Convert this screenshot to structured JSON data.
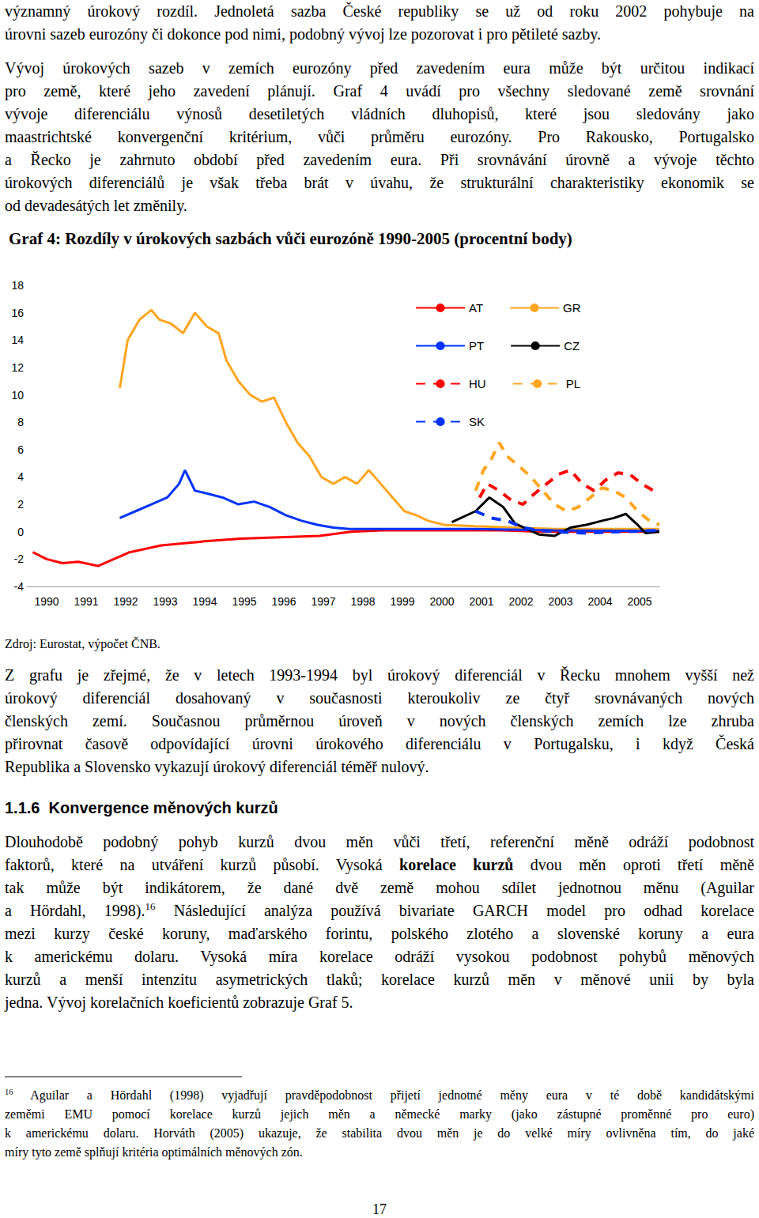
{
  "page": {
    "paragraphs_before": [
      [
        "významný úrokový rozdíl. Jednoletá sazba České republiky se už od roku 2002 pohybuje na",
        "úrovni sazeb eurozóny či dokonce pod nimi, podobný vývoj lze pozorovat i pro pětileté sazby."
      ],
      [
        "Vývoj úrokových sazeb v zemích eurozóny před zavedením eura může být určitou indikací",
        "pro země, které jeho zavedení plánují. Graf 4 uvádí pro všechny sledované země srovnání",
        "vývoje diferenciálu výnosů desetiletých vládních dluhopisů, které jsou sledovány jako",
        "maastrichtské konvergenční kritérium, vůči průměru eurozóny. Pro Rakousko, Portugalsko",
        "a Řecko je zahrnuto období před zavedením eura. Při srovnávání úrovně a vývoje těchto",
        "úrokových diferenciálů je však třeba brát v úvahu, že strukturální charakteristiky ekonomik se",
        "od devadesátých let změnily."
      ]
    ],
    "source": "Zdroj: Eurostat, výpočet ČNB.",
    "paragraphs_after": [
      [
        "Z grafu je zřejmé, že v letech 1993-1994 byl úrokový diferenciál v Řecku mnohem vyšší než",
        "úrokový diferenciál dosahovaný v současnosti kteroukoliv ze čtyř srovnávaných nových",
        "členských zemí. Současnou průměrnou úroveň v nových členských zemích lze zhruba",
        "přirovnat časově odpovídající úrovni úrokového diferenciálu v Portugalsku, i když Česká",
        "Republika a Slovensko vykazují úrokový diferenciál téměř nulový."
      ]
    ],
    "heading": "1.1.6  Konvergence měnových kurzů",
    "paragraphs_section": [
      [
        "Dlouhodobě podobný pohyb kurzů dvou měn vůči třetí, referenční měně odráží podobnost",
        [
          {
            "text": "faktorů, které na utváření kurzů působí. Vysoká "
          },
          {
            "text": "korelace kurzů",
            "style": "bold"
          },
          {
            "text": " dvou měn oproti třetí měně"
          }
        ],
        "tak může být indikátorem, že dané dvě země mohou sdílet jednotnou měnu (Aguilar",
        [
          {
            "text": "a Hördahl, 1998)."
          },
          {
            "text": "16",
            "style": "sup"
          },
          {
            "text": " Následující analýza používá bivariate GARCH model pro odhad korelace"
          }
        ],
        "mezi kurzy české koruny, maďarského forintu, polského zlotého a slovenské koruny a eura",
        "k americkému dolaru. Vysoká míra korelace odráží vysokou podobnost pohybů měnových",
        "kurzů a menší intenzitu asymetrických tlaků; korelace kurzů měn v měnové unii by byla",
        "jedna. Vývoj korelačních koeficientů zobrazuje Graf 5."
      ]
    ],
    "footnote": [
      [
        {
          "text": "16",
          "style": "sup"
        },
        {
          "text": " Aguilar a Hördahl (1998) vyjadřují pravděpodobnost přijetí jednotné měny eura v té době kandidátskými"
        }
      ],
      "zeměmi EMU pomocí korelace kurzů jejich měn a německé marky (jako zástupné proměnné pro euro)",
      "k americkému dolaru. Horváth (2005) ukazuje, že stabilita dvou měn je do velké míry ovlivněna tím, do jaké",
      "míry tyto země splňují kritéria optimálních měnových zón."
    ],
    "page_number": "17"
  },
  "chart_data": {
    "type": "line",
    "title": "Graf 4: Rozdíly v úrokových sazbách vůči eurozóně 1990-2005 (procentní body)",
    "xlim": [
      1990,
      2006
    ],
    "xticks": [
      {
        "value": 1990.5,
        "label": "1990"
      },
      {
        "value": 1991.5,
        "label": "1991"
      },
      {
        "value": 1992.5,
        "label": "1992"
      },
      {
        "value": 1993.5,
        "label": "1993"
      },
      {
        "value": 1994.5,
        "label": "1994"
      },
      {
        "value": 1995.5,
        "label": "1995"
      },
      {
        "value": 1996.5,
        "label": "1996"
      },
      {
        "value": 1997.5,
        "label": "1997"
      },
      {
        "value": 1998.5,
        "label": "1998"
      },
      {
        "value": 1999.5,
        "label": "1999"
      },
      {
        "value": 2000.5,
        "label": "2000"
      },
      {
        "value": 2001.5,
        "label": "2001"
      },
      {
        "value": 2002.5,
        "label": "2002"
      },
      {
        "value": 2003.5,
        "label": "2003"
      },
      {
        "value": 2004.5,
        "label": "2004"
      },
      {
        "value": 2005.5,
        "label": "2005"
      }
    ],
    "ylim": [
      -4,
      18
    ],
    "yticks": [
      -4,
      -2,
      0,
      2,
      4,
      6,
      8,
      10,
      12,
      14,
      16,
      18
    ],
    "grid": false,
    "legend": "top-right",
    "series": [
      {
        "name": "AT",
        "color": "#ff0000",
        "line_style": "solid",
        "x": [
          1990.15,
          1990.5,
          1990.9,
          1991.3,
          1991.8,
          1992.2,
          1992.6,
          1993.4,
          1994.5,
          1995.4,
          1996.4,
          1997.4,
          1998.2,
          1999,
          2000,
          2001,
          2002,
          2003,
          2004,
          2005,
          2006
        ],
        "values": [
          -1.5,
          -2.0,
          -2.3,
          -2.2,
          -2.5,
          -2.0,
          -1.5,
          -1.0,
          -0.7,
          -0.5,
          -0.4,
          -0.3,
          0.0,
          0.1,
          0.1,
          0.1,
          0.1,
          0.0,
          0.0,
          0.0,
          0.0
        ]
      },
      {
        "name": "GR",
        "color": "#ffa51f",
        "line_style": "solid",
        "x": [
          1992.35,
          1992.55,
          1992.85,
          1993.15,
          1993.35,
          1993.65,
          1993.95,
          1994.25,
          1994.55,
          1994.85,
          1995.05,
          1995.35,
          1995.65,
          1995.95,
          1996.25,
          1996.55,
          1996.85,
          1997.15,
          1997.45,
          1997.75,
          1998.05,
          1998.35,
          1998.65,
          1998.95,
          1999.25,
          1999.55,
          1999.85,
          2000.15,
          2000.55,
          2001.35,
          2002.35,
          2003.35,
          2004.35,
          2006
        ],
        "values": [
          10.5,
          14,
          15.5,
          16.2,
          15.5,
          15.2,
          14.5,
          16,
          15,
          14.5,
          12.5,
          11,
          10,
          9.5,
          9.8,
          8,
          6.5,
          5.5,
          4,
          3.5,
          4,
          3.5,
          4.5,
          3.5,
          2.5,
          1.5,
          1.2,
          0.8,
          0.5,
          0.4,
          0.3,
          0.2,
          0.2,
          0.2
        ]
      },
      {
        "name": "PT",
        "color": "#0033ff",
        "line_style": "solid",
        "x": [
          1992.35,
          1992.75,
          1993.15,
          1993.55,
          1993.85,
          1994.0,
          1994.25,
          1994.55,
          1994.95,
          1995.35,
          1995.75,
          1996.15,
          1996.55,
          1996.95,
          1997.35,
          1997.75,
          1998.15,
          1998.75,
          1999.75,
          2001.35,
          2003.35,
          2006
        ],
        "values": [
          1.0,
          1.5,
          2.0,
          2.5,
          3.5,
          4.5,
          3.0,
          2.8,
          2.5,
          2.0,
          2.2,
          1.8,
          1.2,
          0.8,
          0.5,
          0.3,
          0.2,
          0.2,
          0.2,
          0.2,
          0.1,
          0.05
        ]
      },
      {
        "name": "CZ",
        "color": "#000000",
        "line_style": "solid",
        "x": [
          2000.75,
          2001.35,
          2001.7,
          2002.05,
          2002.35,
          2002.95,
          2003.35,
          2003.75,
          2004.15,
          2004.55,
          2004.85,
          2005.15,
          2005.45,
          2005.65,
          2006
        ],
        "values": [
          0.7,
          1.5,
          2.5,
          1.8,
          0.6,
          -0.2,
          -0.3,
          0.3,
          0.5,
          0.8,
          1.0,
          1.3,
          0.5,
          -0.1,
          0.0
        ]
      },
      {
        "name": "HU",
        "color": "#ff0000",
        "line_style": "dashed",
        "x": [
          2001.45,
          2001.65,
          2001.95,
          2002.25,
          2002.55,
          2002.85,
          2003.15,
          2003.45,
          2003.75,
          2004.05,
          2004.35,
          2004.65,
          2004.95,
          2005.25,
          2005.55,
          2005.85
        ],
        "values": [
          2.5,
          3.5,
          3.0,
          2.3,
          2.0,
          2.8,
          3.5,
          4.2,
          4.5,
          3.5,
          3.0,
          3.8,
          4.3,
          4.2,
          3.5,
          3.0
        ]
      },
      {
        "name": "PL",
        "color": "#ffa51f",
        "line_style": "dashed",
        "x": [
          2001.35,
          2001.55,
          2001.75,
          2001.95,
          2002.15,
          2002.45,
          2002.75,
          2003.05,
          2003.35,
          2003.65,
          2003.95,
          2004.25,
          2004.55,
          2004.85,
          2005.15,
          2005.45,
          2005.75,
          2006
        ],
        "values": [
          3.0,
          4.5,
          5.3,
          6.5,
          5.5,
          4.8,
          4.0,
          3.0,
          2.0,
          1.5,
          1.8,
          2.5,
          3.2,
          3.0,
          2.5,
          1.5,
          0.8,
          0.5
        ]
      },
      {
        "name": "SK",
        "color": "#0033ff",
        "line_style": "dashed",
        "x": [
          2001.35,
          2001.75,
          2002.15,
          2002.55,
          2002.95,
          2003.35,
          2004.15,
          2004.95,
          2006
        ],
        "values": [
          1.5,
          1.0,
          0.8,
          0.3,
          0.1,
          0.0,
          -0.1,
          0.0,
          0.1
        ]
      }
    ]
  }
}
